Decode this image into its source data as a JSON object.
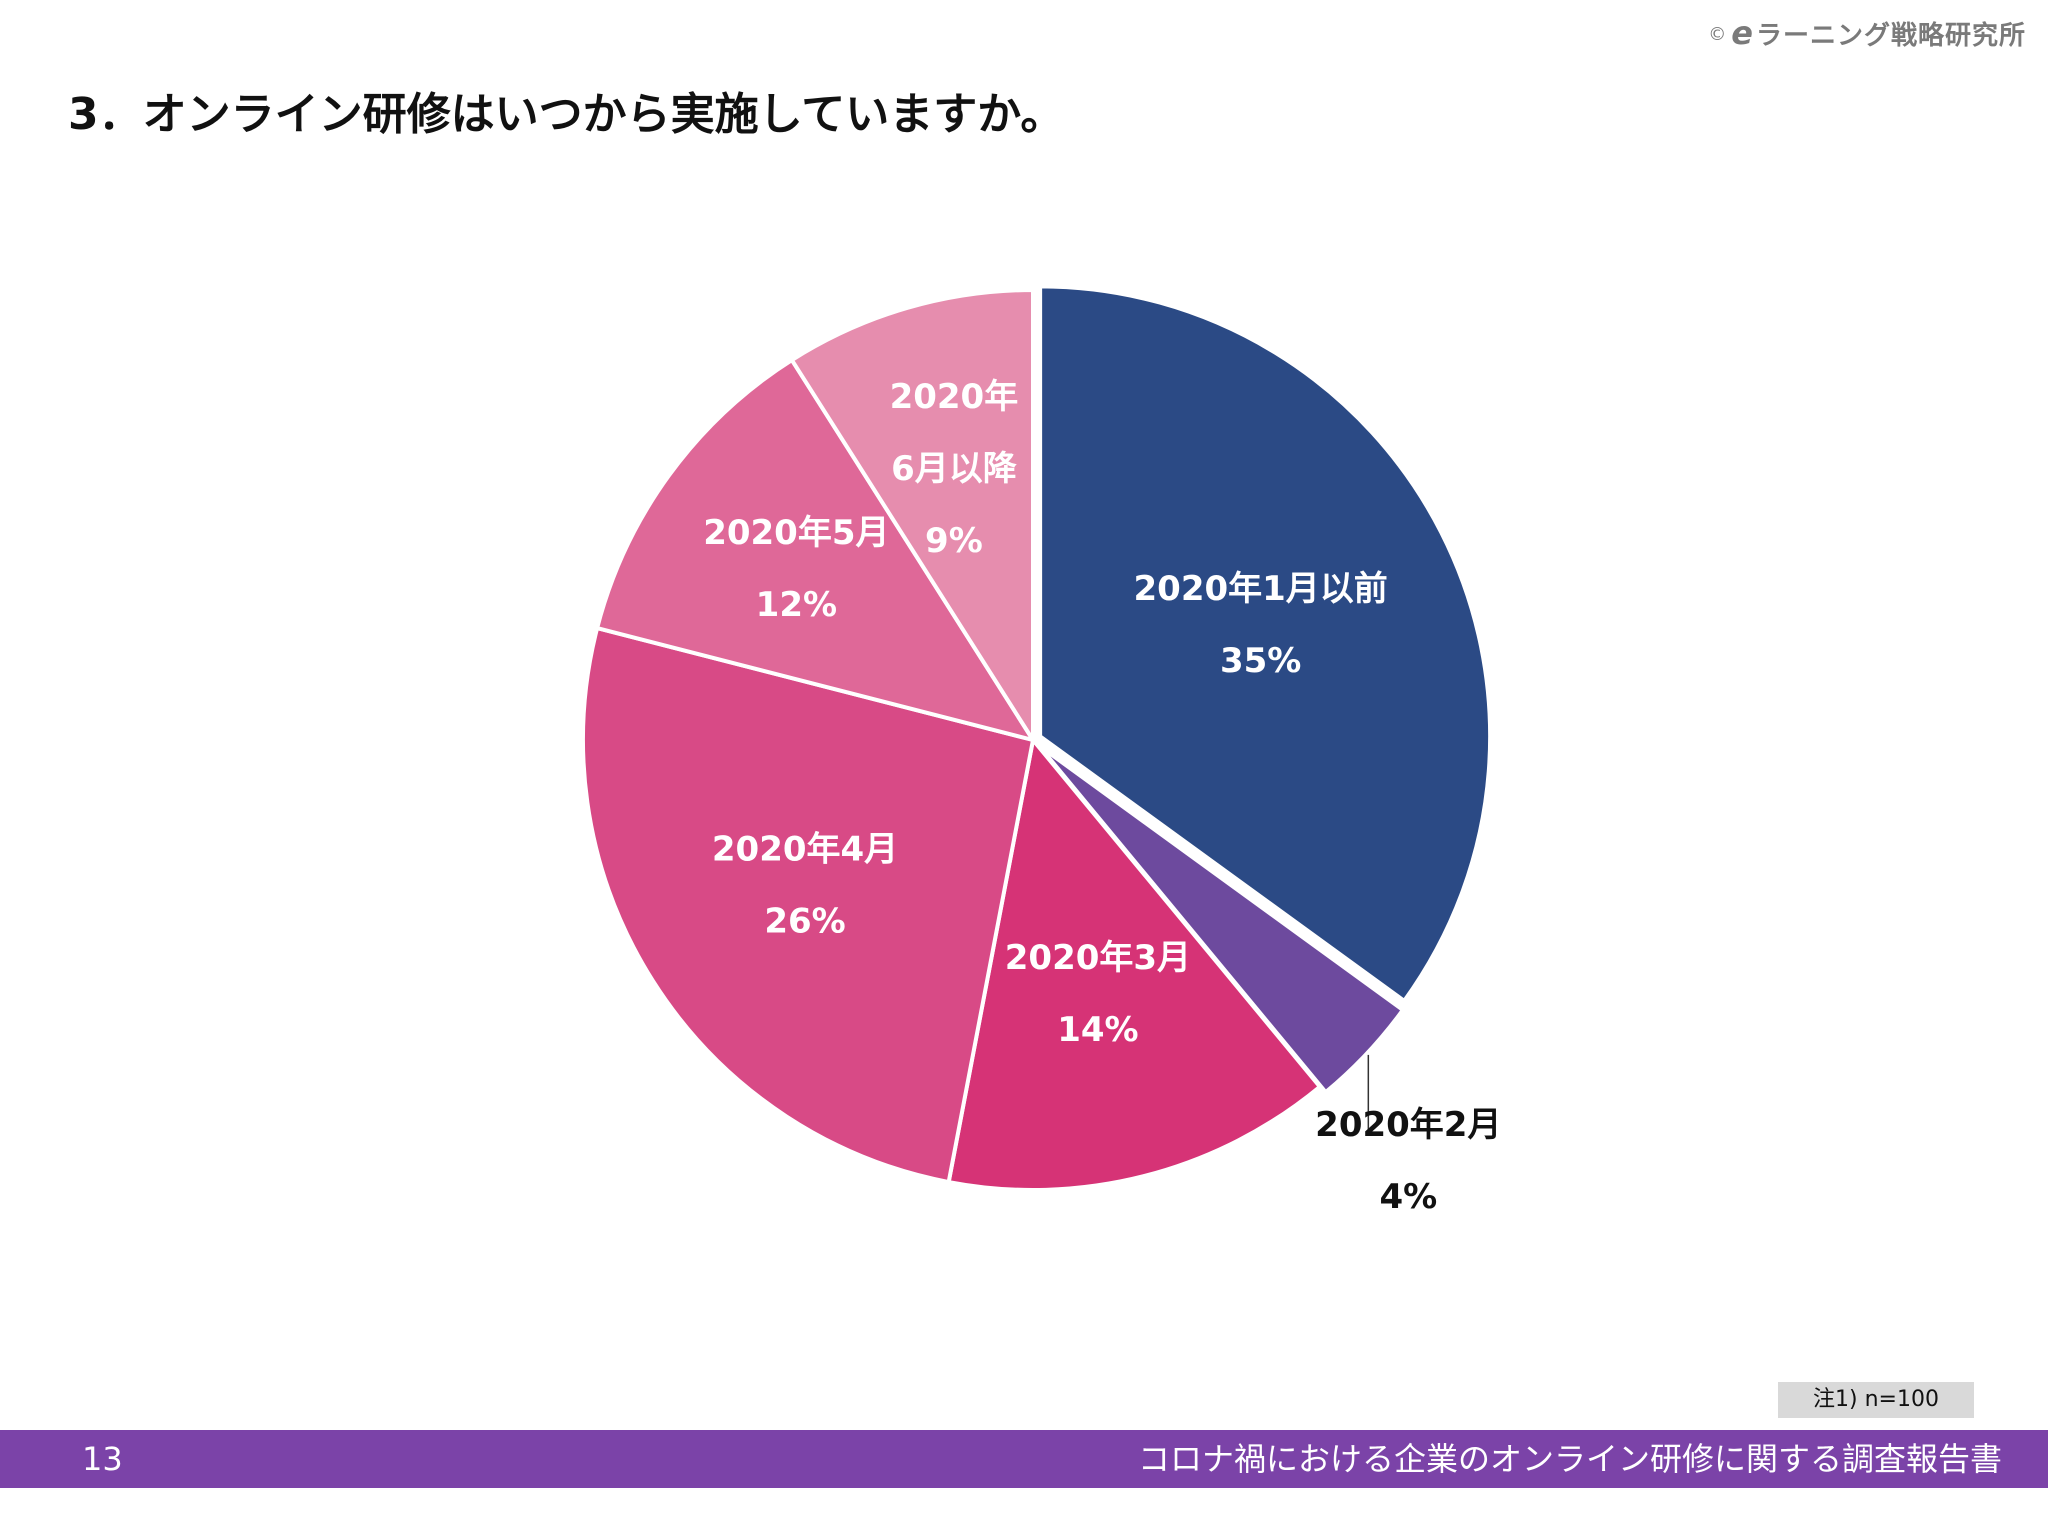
{
  "header": {
    "copyright_mark": "©",
    "brand_e": "e",
    "brand_rest": "ラーニング戦略研究所"
  },
  "title": "3．オンライン研修はいつから実施していますか。",
  "chart_data": {
    "type": "pie",
    "start": "12 o'clock",
    "direction": "clockwise",
    "categories": [
      "2020年1月以前",
      "2020年2月",
      "2020年3月",
      "2020年4月",
      "2020年5月",
      "2020年6月以降"
    ],
    "values": [
      35,
      4,
      14,
      26,
      12,
      9
    ],
    "labels": [
      {
        "lines": [
          "2020年1月以前",
          "35%"
        ],
        "color": "#ffffff"
      },
      {
        "lines": [
          "2020年2月",
          "4%"
        ],
        "color": "#111111",
        "outside": true
      },
      {
        "lines": [
          "2020年3月",
          "14%"
        ],
        "color": "#ffffff"
      },
      {
        "lines": [
          "2020年4月",
          "26%"
        ],
        "color": "#ffffff"
      },
      {
        "lines": [
          "2020年5月",
          "12%"
        ],
        "color": "#ffffff"
      },
      {
        "lines": [
          "2020年",
          "6月以降",
          "9%"
        ],
        "color": "#ffffff"
      }
    ],
    "colors": [
      "#2b4a85",
      "#6d4a9e",
      "#d63376",
      "#d84a86",
      "#df6898",
      "#e68dae"
    ],
    "title": ""
  },
  "note": "注1) n=100",
  "footer": {
    "page_number": "13",
    "report_title": "コロナ禍における企業のオンライン研修に関する調査報告書"
  }
}
